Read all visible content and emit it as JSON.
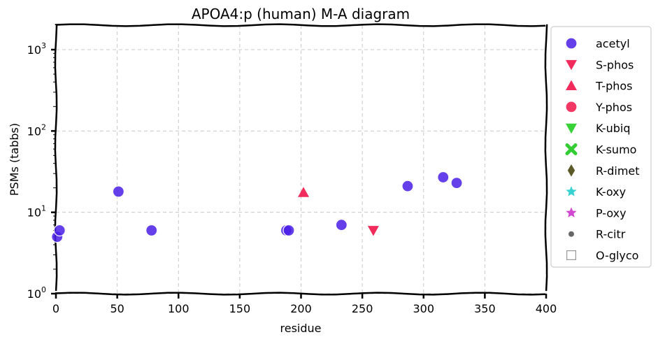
{
  "chart_data": {
    "type": "scatter",
    "title": "APOA4:p (human) M-A diagram",
    "xlabel": "residue",
    "ylabel": "PSMs (tabbs)",
    "xlim": [
      0,
      400
    ],
    "ylim": [
      1,
      2000
    ],
    "yscale": "log",
    "grid": true,
    "legend_position": "outside-right",
    "x_ticks": [
      0,
      50,
      100,
      150,
      200,
      250,
      300,
      350,
      400
    ],
    "y_ticks": [
      {
        "value": 1,
        "base": "10",
        "exp": "0"
      },
      {
        "value": 10,
        "base": "10",
        "exp": "1"
      },
      {
        "value": 100,
        "base": "10",
        "exp": "2"
      },
      {
        "value": 1000,
        "base": "10",
        "exp": "3"
      }
    ],
    "series": [
      {
        "name": "acetyl",
        "marker": "circle",
        "color": "#4a1ee6",
        "points": [
          [
            1,
            5
          ],
          [
            3,
            6
          ],
          [
            51,
            18
          ],
          [
            78,
            6
          ],
          [
            188,
            6
          ],
          [
            190,
            6
          ],
          [
            233,
            7
          ],
          [
            287,
            21
          ],
          [
            316,
            27
          ],
          [
            327,
            23
          ]
        ]
      },
      {
        "name": "S-phos",
        "marker": "triangle-down",
        "color": "#f0144a",
        "points": [
          [
            259,
            6
          ]
        ]
      },
      {
        "name": "T-phos",
        "marker": "triangle-up",
        "color": "#f0144a",
        "points": [
          [
            202,
            17.5
          ]
        ]
      },
      {
        "name": "Y-phos",
        "marker": "circle",
        "color": "#f0144a",
        "points": []
      },
      {
        "name": "K-ubiq",
        "marker": "triangle-down",
        "color": "#22cc22",
        "points": []
      },
      {
        "name": "K-sumo",
        "marker": "x",
        "color": "#33cc33",
        "points": []
      },
      {
        "name": "R-dimet",
        "marker": "diamond",
        "color": "#5c5a28",
        "points": []
      },
      {
        "name": "K-oxy",
        "marker": "star",
        "color": "#22cccc",
        "points": []
      },
      {
        "name": "P-oxy",
        "marker": "star",
        "color": "#cc33cc",
        "points": []
      },
      {
        "name": "R-citr",
        "marker": "dot",
        "color": "#666666",
        "points": []
      },
      {
        "name": "O-glyco",
        "marker": "square-open",
        "color": "#999999",
        "points": []
      }
    ]
  }
}
